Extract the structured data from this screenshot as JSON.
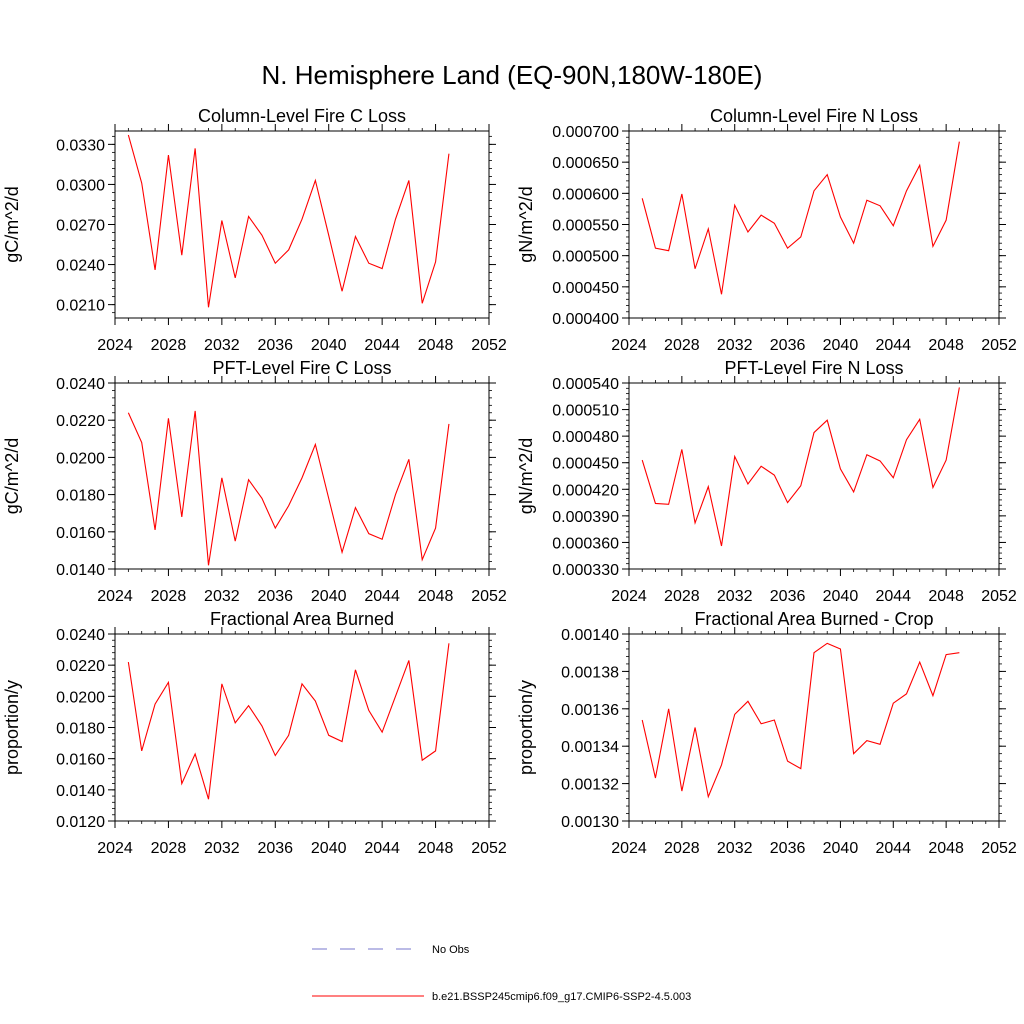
{
  "figure": {
    "title": "N. Hemisphere Land (EQ-90N,180W-180E)"
  },
  "chart_data": [
    {
      "type": "line",
      "title": "Column-Level Fire C Loss",
      "ylabel": "gC/m^2/d",
      "xlim": [
        2024,
        2052
      ],
      "ylim": [
        0.02,
        0.034
      ],
      "x_ticks": [
        2024,
        2028,
        2032,
        2036,
        2040,
        2044,
        2048,
        2052
      ],
      "y_ticks": [
        0.021,
        0.024,
        0.027,
        0.03,
        0.033
      ],
      "y_tick_labels": [
        "0.0210",
        "0.0240",
        "0.0270",
        "0.0300",
        "0.0330"
      ],
      "series": [
        {
          "name": "b.e21.BSSP245cmip6.f09_g17.CMIP6-SSP2-4.5.003",
          "color": "#ff0000",
          "x": [
            2025,
            2026,
            2027,
            2028,
            2029,
            2030,
            2031,
            2032,
            2033,
            2034,
            2035,
            2036,
            2037,
            2038,
            2039,
            2040,
            2041,
            2042,
            2043,
            2044,
            2045,
            2046,
            2047,
            2048,
            2049
          ],
          "y": [
            0.0337,
            0.0301,
            0.0236,
            0.0322,
            0.0247,
            0.0327,
            0.0208,
            0.0273,
            0.023,
            0.0276,
            0.0262,
            0.0241,
            0.0251,
            0.0274,
            0.0303,
            0.0262,
            0.022,
            0.0261,
            0.0241,
            0.0237,
            0.0274,
            0.0303,
            0.0211,
            0.0242,
            0.0323
          ]
        }
      ]
    },
    {
      "type": "line",
      "title": "Column-Level Fire N Loss",
      "ylabel": "gN/m^2/d",
      "xlim": [
        2024,
        2052
      ],
      "ylim": [
        0.0004,
        0.0007
      ],
      "x_ticks": [
        2024,
        2028,
        2032,
        2036,
        2040,
        2044,
        2048,
        2052
      ],
      "y_ticks": [
        0.0004,
        0.00045,
        0.0005,
        0.00055,
        0.0006,
        0.00065,
        0.0007
      ],
      "y_tick_labels": [
        "0.000400",
        "0.000450",
        "0.000500",
        "0.000550",
        "0.000600",
        "0.000650",
        "0.000700"
      ],
      "series": [
        {
          "name": "b.e21.BSSP245cmip6.f09_g17.CMIP6-SSP2-4.5.003",
          "color": "#ff0000",
          "x": [
            2025,
            2026,
            2027,
            2028,
            2029,
            2030,
            2031,
            2032,
            2033,
            2034,
            2035,
            2036,
            2037,
            2038,
            2039,
            2040,
            2041,
            2042,
            2043,
            2044,
            2045,
            2046,
            2047,
            2048,
            2049
          ],
          "y": [
            0.000592,
            0.000512,
            0.000508,
            0.000599,
            0.000479,
            0.000543,
            0.000438,
            0.000581,
            0.000538,
            0.000565,
            0.000552,
            0.000512,
            0.00053,
            0.000604,
            0.00063,
            0.000562,
            0.00052,
            0.000589,
            0.00058,
            0.000548,
            0.000604,
            0.000645,
            0.000515,
            0.000557,
            0.000683
          ]
        }
      ]
    },
    {
      "type": "line",
      "title": "PFT-Level Fire C Loss",
      "ylabel": "gC/m^2/d",
      "xlim": [
        2024,
        2052
      ],
      "ylim": [
        0.014,
        0.024
      ],
      "x_ticks": [
        2024,
        2028,
        2032,
        2036,
        2040,
        2044,
        2048,
        2052
      ],
      "y_ticks": [
        0.014,
        0.016,
        0.018,
        0.02,
        0.022,
        0.024
      ],
      "y_tick_labels": [
        "0.0140",
        "0.0160",
        "0.0180",
        "0.0200",
        "0.0220",
        "0.0240"
      ],
      "series": [
        {
          "name": "b.e21.BSSP245cmip6.f09_g17.CMIP6-SSP2-4.5.003",
          "color": "#ff0000",
          "x": [
            2025,
            2026,
            2027,
            2028,
            2029,
            2030,
            2031,
            2032,
            2033,
            2034,
            2035,
            2036,
            2037,
            2038,
            2039,
            2040,
            2041,
            2042,
            2043,
            2044,
            2045,
            2046,
            2047,
            2048,
            2049
          ],
          "y": [
            0.0224,
            0.0208,
            0.0161,
            0.0221,
            0.0168,
            0.0225,
            0.0142,
            0.0189,
            0.0155,
            0.0188,
            0.0178,
            0.0162,
            0.0174,
            0.0189,
            0.0207,
            0.0178,
            0.0149,
            0.0173,
            0.0159,
            0.0156,
            0.018,
            0.0199,
            0.0145,
            0.0162,
            0.0218
          ]
        }
      ]
    },
    {
      "type": "line",
      "title": "PFT-Level Fire N Loss",
      "ylabel": "gN/m^2/d",
      "xlim": [
        2024,
        2052
      ],
      "ylim": [
        0.00033,
        0.00054
      ],
      "x_ticks": [
        2024,
        2028,
        2032,
        2036,
        2040,
        2044,
        2048,
        2052
      ],
      "y_ticks": [
        0.00033,
        0.00036,
        0.00039,
        0.00042,
        0.00045,
        0.00048,
        0.00051,
        0.00054
      ],
      "y_tick_labels": [
        "0.000330",
        "0.000360",
        "0.000390",
        "0.000420",
        "0.000450",
        "0.000480",
        "0.000510",
        "0.000540"
      ],
      "series": [
        {
          "name": "b.e21.BSSP245cmip6.f09_g17.CMIP6-SSP2-4.5.003",
          "color": "#ff0000",
          "x": [
            2025,
            2026,
            2027,
            2028,
            2029,
            2030,
            2031,
            2032,
            2033,
            2034,
            2035,
            2036,
            2037,
            2038,
            2039,
            2040,
            2041,
            2042,
            2043,
            2044,
            2045,
            2046,
            2047,
            2048,
            2049
          ],
          "y": [
            0.000453,
            0.000404,
            0.000403,
            0.000465,
            0.000382,
            0.000423,
            0.000356,
            0.000457,
            0.000426,
            0.000446,
            0.000436,
            0.000405,
            0.000424,
            0.000484,
            0.000498,
            0.000443,
            0.000417,
            0.000459,
            0.000452,
            0.000433,
            0.000476,
            0.000499,
            0.000422,
            0.000453,
            0.000535
          ]
        }
      ]
    },
    {
      "type": "line",
      "title": "Fractional Area Burned",
      "ylabel": "proportion/y",
      "xlim": [
        2024,
        2052
      ],
      "ylim": [
        0.012,
        0.024
      ],
      "x_ticks": [
        2024,
        2028,
        2032,
        2036,
        2040,
        2044,
        2048,
        2052
      ],
      "y_ticks": [
        0.012,
        0.014,
        0.016,
        0.018,
        0.02,
        0.022,
        0.024
      ],
      "y_tick_labels": [
        "0.0120",
        "0.0140",
        "0.0160",
        "0.0180",
        "0.0200",
        "0.0220",
        "0.0240"
      ],
      "series": [
        {
          "name": "b.e21.BSSP245cmip6.f09_g17.CMIP6-SSP2-4.5.003",
          "color": "#ff0000",
          "x": [
            2025,
            2026,
            2027,
            2028,
            2029,
            2030,
            2031,
            2032,
            2033,
            2034,
            2035,
            2036,
            2037,
            2038,
            2039,
            2040,
            2041,
            2042,
            2043,
            2044,
            2045,
            2046,
            2047,
            2048,
            2049
          ],
          "y": [
            0.0222,
            0.0165,
            0.0195,
            0.0209,
            0.0144,
            0.0163,
            0.0134,
            0.0208,
            0.0183,
            0.0194,
            0.0181,
            0.0162,
            0.0175,
            0.0208,
            0.0197,
            0.0175,
            0.0171,
            0.0217,
            0.0191,
            0.0177,
            0.02,
            0.0223,
            0.0159,
            0.0165,
            0.0234
          ]
        }
      ]
    },
    {
      "type": "line",
      "title": "Fractional Area Burned - Crop",
      "ylabel": "proportion/y",
      "xlim": [
        2024,
        2052
      ],
      "ylim": [
        0.0013,
        0.0014
      ],
      "x_ticks": [
        2024,
        2028,
        2032,
        2036,
        2040,
        2044,
        2048,
        2052
      ],
      "y_ticks": [
        0.0013,
        0.00132,
        0.00134,
        0.00136,
        0.00138,
        0.0014
      ],
      "y_tick_labels": [
        "0.00130",
        "0.00132",
        "0.00134",
        "0.00136",
        "0.00138",
        "0.00140"
      ],
      "series": [
        {
          "name": "b.e21.BSSP245cmip6.f09_g17.CMIP6-SSP2-4.5.003",
          "color": "#ff0000",
          "x": [
            2025,
            2026,
            2027,
            2028,
            2029,
            2030,
            2031,
            2032,
            2033,
            2034,
            2035,
            2036,
            2037,
            2038,
            2039,
            2040,
            2041,
            2042,
            2043,
            2044,
            2045,
            2046,
            2047,
            2048,
            2049
          ],
          "y": [
            0.001354,
            0.001323,
            0.00136,
            0.001316,
            0.00135,
            0.001313,
            0.00133,
            0.001357,
            0.001364,
            0.001352,
            0.001354,
            0.001332,
            0.001328,
            0.00139,
            0.001395,
            0.001392,
            0.001336,
            0.001343,
            0.001341,
            0.001363,
            0.001368,
            0.001385,
            0.001367,
            0.001389,
            0.00139
          ]
        }
      ]
    }
  ],
  "legend": {
    "entries": [
      {
        "label": "No Obs",
        "color": "#7777cc",
        "style": "dashed"
      },
      {
        "label": "b.e21.BSSP245cmip6.f09_g17.CMIP6-SSP2-4.5.003",
        "color": "#ff0000",
        "style": "solid"
      }
    ]
  }
}
